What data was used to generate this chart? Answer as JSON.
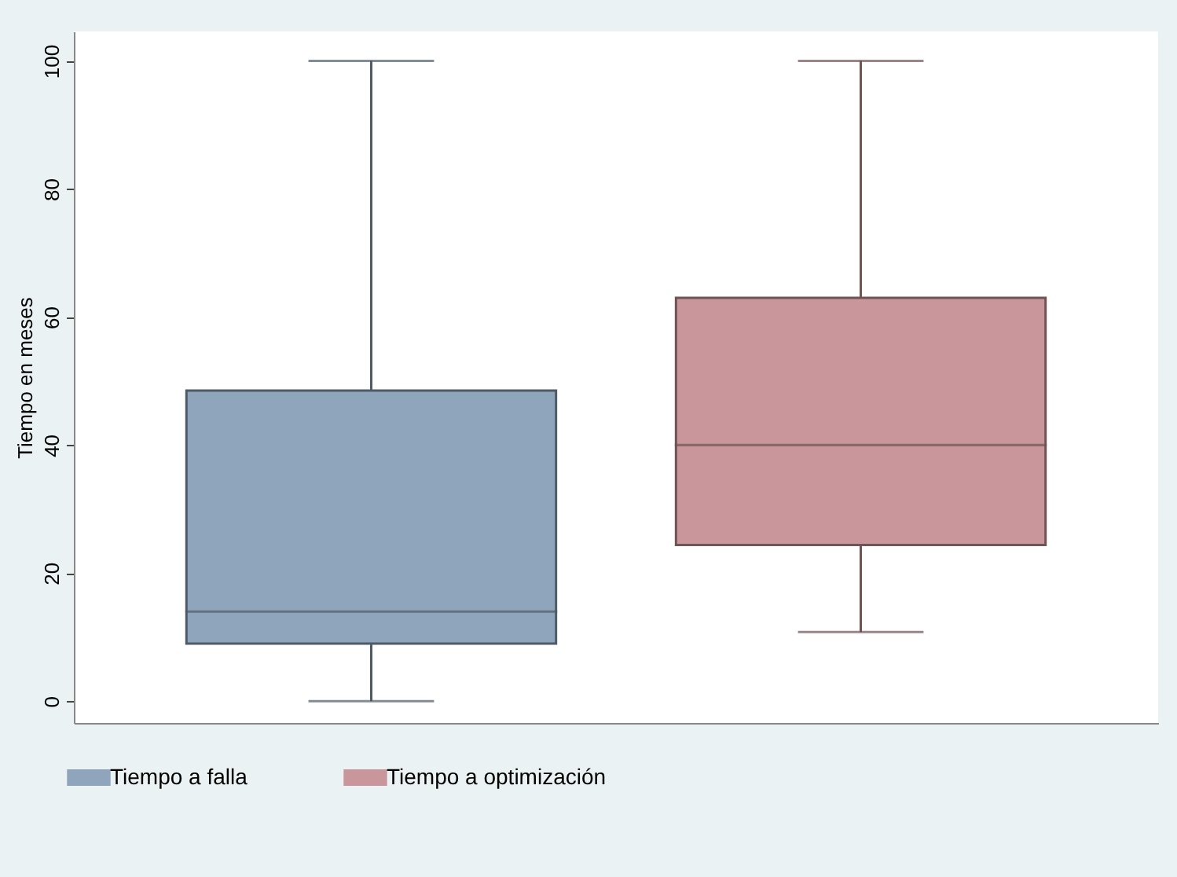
{
  "chart_data": {
    "type": "box",
    "ylabel": "Tiempo en meses",
    "categories": [
      null
    ],
    "series": [
      {
        "name": "Tiempo a falla",
        "color": "#8ea5bb",
        "boxes": [
          {
            "low": 0,
            "q1": 9,
            "median": 14,
            "q3": 48.5,
            "high": 100
          }
        ]
      },
      {
        "name": "Tiempo a optimización",
        "color": "#c9979b",
        "boxes": [
          {
            "low": 10.8,
            "q1": 24.4,
            "median": 40,
            "q3": 63,
            "high": 100
          }
        ]
      }
    ],
    "ylim": [
      -3.4,
      104.6
    ],
    "yticks": [
      0,
      20,
      40,
      60,
      80,
      100
    ],
    "grid": false,
    "legend": "bottom",
    "tick_labels": "y"
  }
}
